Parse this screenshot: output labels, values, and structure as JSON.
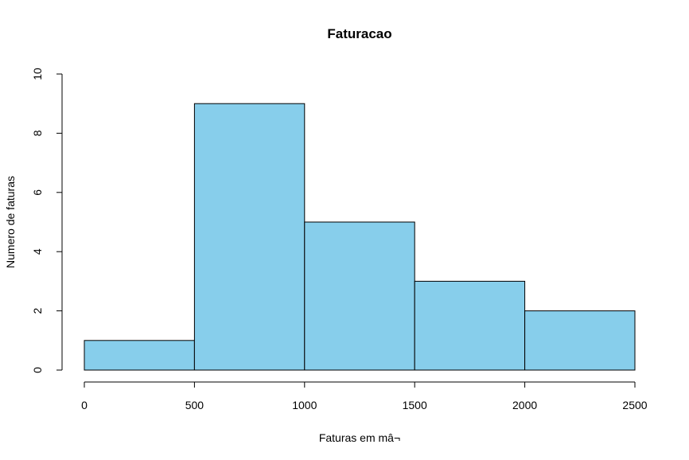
{
  "chart_data": {
    "type": "bar",
    "title": "Faturacao",
    "xlabel": "Faturas em mâ¬",
    "ylabel": "Numero de faturas",
    "bins": [
      {
        "start": 0,
        "end": 500,
        "count": 1
      },
      {
        "start": 500,
        "end": 1000,
        "count": 9
      },
      {
        "start": 1000,
        "end": 1500,
        "count": 5
      },
      {
        "start": 1500,
        "end": 2000,
        "count": 3
      },
      {
        "start": 2000,
        "end": 2500,
        "count": 2
      }
    ],
    "xlim": [
      0,
      2500
    ],
    "ylim": [
      0,
      10
    ],
    "x_ticks": [
      0,
      500,
      1000,
      1500,
      2000,
      2500
    ],
    "y_ticks": [
      0,
      2,
      4,
      6,
      8,
      10
    ],
    "grid": false,
    "bar_color": "#87CEEB",
    "bar_edge_color": "#000000"
  }
}
